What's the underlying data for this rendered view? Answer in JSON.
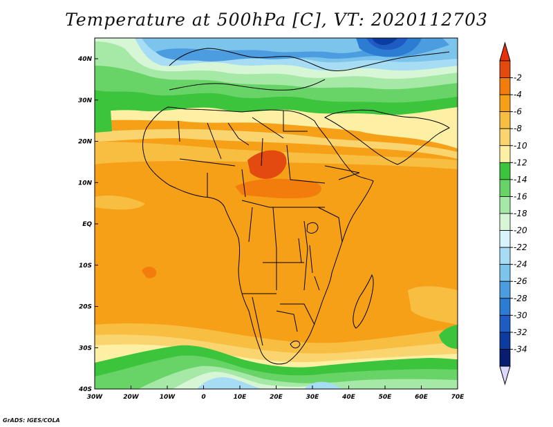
{
  "title": "Temperature at 500hPa [C], VT: 2020112703",
  "credit": "GrADS: IGES/COLA",
  "lon_ticks": [
    "30W",
    "20W",
    "10W",
    "0",
    "10E",
    "20E",
    "30E",
    "40E",
    "50E",
    "60E",
    "70E"
  ],
  "lat_ticks": [
    "40N",
    "30N",
    "20N",
    "10N",
    "EQ",
    "10S",
    "20S",
    "30S",
    "40S"
  ],
  "colorbar": {
    "labels": [
      "-2",
      "-4",
      "-6",
      "-8",
      "-10",
      "-12",
      "-14",
      "-16",
      "-18",
      "-20",
      "-22",
      "-24",
      "-26",
      "-28",
      "-30",
      "-32",
      "-34"
    ],
    "colors": [
      "#e34a10",
      "#f27d0c",
      "#f6a018",
      "#f8be42",
      "#fad56f",
      "#fdf0a4",
      "#3cc43c",
      "#68d468",
      "#a6e8a6",
      "#d6f6d6",
      "#d8f4fa",
      "#a6dcf4",
      "#7cc4ec",
      "#4c9ce0",
      "#2c7cd4",
      "#1e5cc4",
      "#0c3ca0",
      "#081c70"
    ],
    "over_color": "#e8300c",
    "under_color": "#dcd8ff"
  },
  "colors": {
    "background": "#ffffff",
    "ocean_base": "#f6a018",
    "coast": "#000000"
  }
}
